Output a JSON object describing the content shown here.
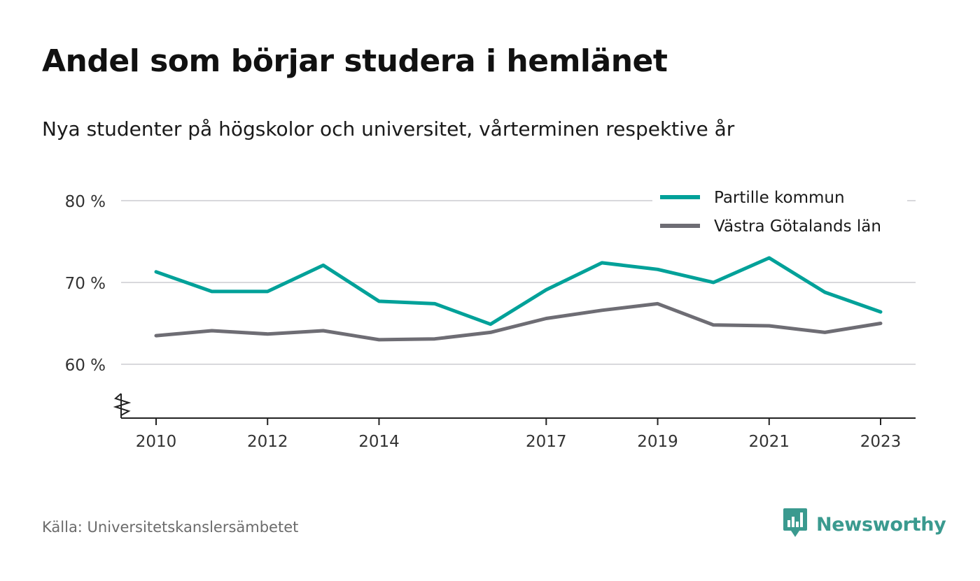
{
  "title": "Andel som börjar studera i hemlänet",
  "subtitle": "Nya studenter på högskolor och universitet, vårterminen respektive år",
  "source": "Källa: Universitetskanslersämbetet",
  "brand": {
    "name": "Newsworthy",
    "icon": "bar-chart-speech-bubble-icon",
    "color": "#3a9a8f"
  },
  "chart_data": {
    "type": "line",
    "x": [
      2010,
      2011,
      2012,
      2013,
      2014,
      2015,
      2016,
      2017,
      2018,
      2019,
      2020,
      2021,
      2022,
      2023
    ],
    "x_tick_values": [
      2010,
      2012,
      2014,
      2017,
      2019,
      2021,
      2023
    ],
    "y_tick_values": [
      60,
      70,
      80
    ],
    "y_tick_labels": [
      "60 %",
      "70 %",
      "80 %"
    ],
    "ylim": [
      53.5,
      80
    ],
    "axis_break": true,
    "grid": true,
    "legend_position": "top-right",
    "series": [
      {
        "name": "Partille kommun",
        "color": "#00a199",
        "values": [
          71.3,
          68.9,
          68.9,
          72.1,
          67.7,
          67.4,
          64.9,
          69.1,
          72.4,
          71.6,
          70.0,
          73.0,
          68.8,
          66.4
        ]
      },
      {
        "name": "Västra Götalands län",
        "color": "#6e6d74",
        "values": [
          63.5,
          64.1,
          63.7,
          64.1,
          63.0,
          63.1,
          63.9,
          65.6,
          66.6,
          67.4,
          64.8,
          64.7,
          63.9,
          65.0
        ]
      }
    ]
  }
}
